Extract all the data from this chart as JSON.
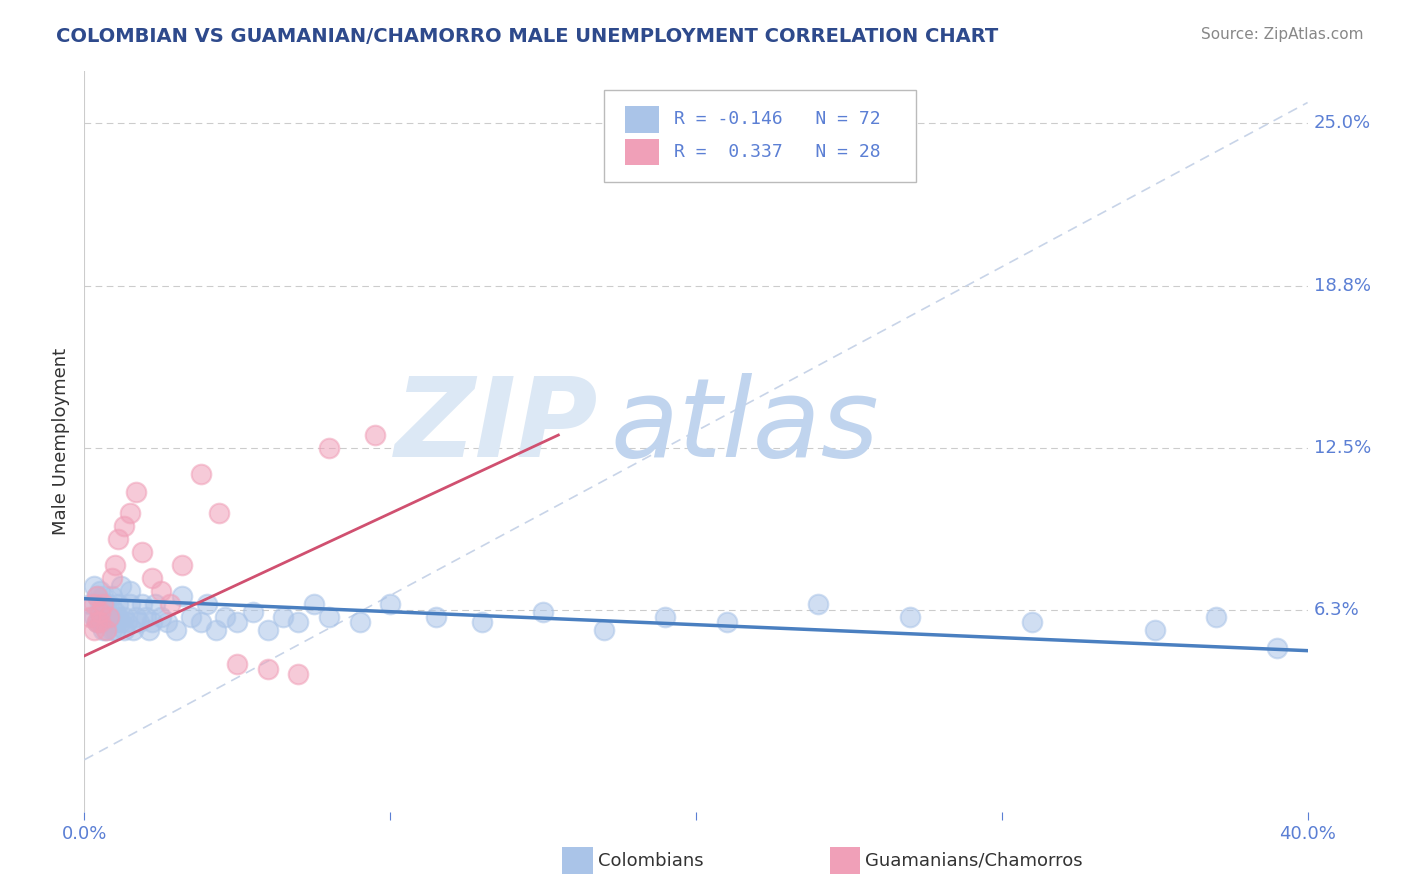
{
  "title": "COLOMBIAN VS GUAMANIAN/CHAMORRO MALE UNEMPLOYMENT CORRELATION CHART",
  "source": "Source: ZipAtlas.com",
  "ylabel": "Male Unemployment",
  "xlim": [
    0.0,
    0.4
  ],
  "ylim": [
    -0.015,
    0.27
  ],
  "title_color": "#2e4a8c",
  "axis_color": "#5b7fd4",
  "blue_color": "#aac4e8",
  "pink_color": "#f0a0b8",
  "blue_line_color": "#4a7fc0",
  "pink_line_color": "#d05070",
  "ref_line_color": "#c8d4e8",
  "watermark_zip_color": "#d0ddf0",
  "watermark_atlas_color": "#b8ccec",
  "colombians_x": [
    0.002,
    0.003,
    0.003,
    0.004,
    0.004,
    0.005,
    0.005,
    0.005,
    0.005,
    0.006,
    0.006,
    0.006,
    0.007,
    0.007,
    0.007,
    0.007,
    0.008,
    0.008,
    0.008,
    0.009,
    0.009,
    0.009,
    0.01,
    0.01,
    0.01,
    0.011,
    0.011,
    0.012,
    0.012,
    0.013,
    0.013,
    0.014,
    0.015,
    0.015,
    0.016,
    0.017,
    0.018,
    0.019,
    0.02,
    0.021,
    0.022,
    0.023,
    0.025,
    0.027,
    0.03,
    0.032,
    0.035,
    0.038,
    0.04,
    0.043,
    0.046,
    0.05,
    0.055,
    0.06,
    0.065,
    0.07,
    0.075,
    0.08,
    0.09,
    0.1,
    0.115,
    0.13,
    0.15,
    0.17,
    0.19,
    0.21,
    0.24,
    0.27,
    0.31,
    0.35,
    0.37,
    0.39
  ],
  "colombians_y": [
    0.065,
    0.06,
    0.072,
    0.058,
    0.068,
    0.062,
    0.07,
    0.058,
    0.065,
    0.055,
    0.06,
    0.068,
    0.058,
    0.062,
    0.055,
    0.065,
    0.06,
    0.058,
    0.065,
    0.055,
    0.06,
    0.068,
    0.058,
    0.062,
    0.055,
    0.06,
    0.065,
    0.058,
    0.072,
    0.055,
    0.06,
    0.058,
    0.065,
    0.07,
    0.055,
    0.06,
    0.058,
    0.065,
    0.06,
    0.055,
    0.058,
    0.065,
    0.06,
    0.058,
    0.055,
    0.068,
    0.06,
    0.058,
    0.065,
    0.055,
    0.06,
    0.058,
    0.062,
    0.055,
    0.06,
    0.058,
    0.065,
    0.06,
    0.058,
    0.065,
    0.06,
    0.058,
    0.062,
    0.055,
    0.06,
    0.058,
    0.065,
    0.06,
    0.058,
    0.055,
    0.06,
    0.048
  ],
  "guamanians_x": [
    0.002,
    0.003,
    0.003,
    0.004,
    0.004,
    0.005,
    0.005,
    0.006,
    0.007,
    0.008,
    0.009,
    0.01,
    0.011,
    0.013,
    0.015,
    0.017,
    0.019,
    0.022,
    0.025,
    0.028,
    0.032,
    0.038,
    0.044,
    0.05,
    0.06,
    0.07,
    0.08,
    0.095
  ],
  "guamanians_y": [
    0.06,
    0.055,
    0.065,
    0.058,
    0.068,
    0.062,
    0.058,
    0.065,
    0.055,
    0.06,
    0.075,
    0.08,
    0.09,
    0.095,
    0.1,
    0.108,
    0.085,
    0.075,
    0.07,
    0.065,
    0.08,
    0.115,
    0.1,
    0.042,
    0.04,
    0.038,
    0.125,
    0.13
  ],
  "blue_line_x": [
    0.0,
    0.4
  ],
  "blue_line_y": [
    0.067,
    0.047
  ],
  "pink_line_x": [
    0.0,
    0.155
  ],
  "pink_line_y": [
    0.045,
    0.13
  ],
  "ref_line_x": [
    0.0,
    0.4
  ],
  "ref_line_y": [
    0.005,
    0.258
  ]
}
